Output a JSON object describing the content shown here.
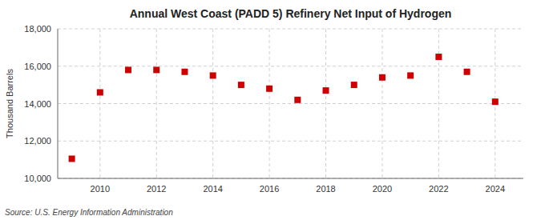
{
  "chart_data": {
    "type": "scatter",
    "title": "Annual West Coast (PADD 5) Refinery Net Input of Hydrogen",
    "y_label": "Thousand Barrels",
    "source": "Source: U.S. Energy Information Administration",
    "x": [
      2009,
      2010,
      2011,
      2012,
      2013,
      2014,
      2015,
      2016,
      2017,
      2018,
      2019,
      2020,
      2021,
      2022,
      2023,
      2024
    ],
    "values": [
      11050,
      14600,
      15800,
      15800,
      15700,
      15500,
      15000,
      14800,
      14200,
      14700,
      15000,
      15400,
      15500,
      16500,
      15700,
      14100
    ],
    "color": "#cc0000",
    "marker": "square",
    "xlim": [
      2008.5,
      2025
    ],
    "xticks": [
      2010,
      2012,
      2014,
      2016,
      2018,
      2020,
      2022,
      2024
    ],
    "ylim": [
      10000,
      18000
    ],
    "yticks": [
      {
        "value": 10000,
        "label": "10,000"
      },
      {
        "value": 12000,
        "label": "12,000"
      },
      {
        "value": 14000,
        "label": "14,000"
      },
      {
        "value": 16000,
        "label": "16,000"
      },
      {
        "value": 18000,
        "label": "18,000"
      }
    ],
    "grid": true
  }
}
